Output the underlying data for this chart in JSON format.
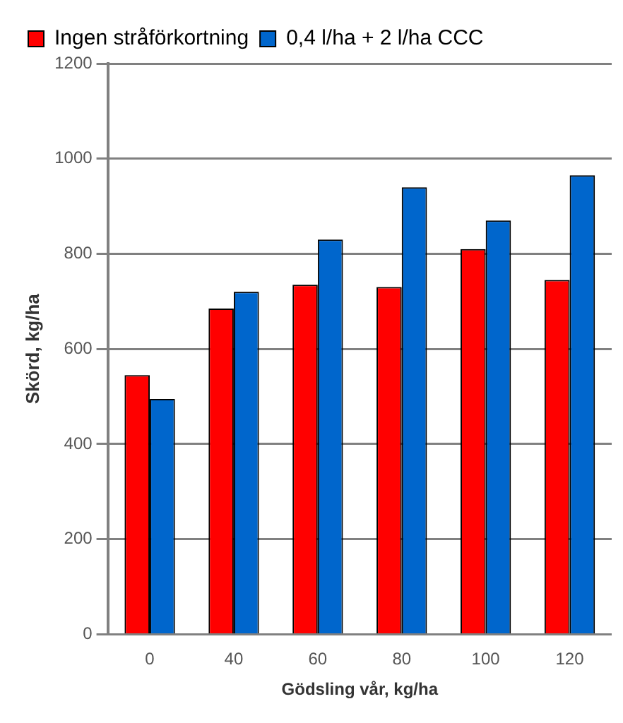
{
  "chart_data": {
    "type": "bar",
    "xlabel": "Gödsling vår, kg/ha",
    "ylabel": "Skörd, kg/ha",
    "categories": [
      "0",
      "40",
      "60",
      "80",
      "100",
      "120"
    ],
    "series": [
      {
        "name": "Ingen stråförkortning",
        "color": "#ff0000",
        "values": [
          545,
          685,
          735,
          730,
          810,
          745
        ]
      },
      {
        "name": "0,4 l/ha + 2 l/ha CCC",
        "color": "#0066cc",
        "values": [
          495,
          720,
          830,
          940,
          870,
          965
        ]
      }
    ],
    "ylim": [
      0,
      1200
    ],
    "yticks": [
      0,
      200,
      400,
      600,
      800,
      1000,
      1200
    ],
    "grid": "y",
    "legend": "top left"
  }
}
